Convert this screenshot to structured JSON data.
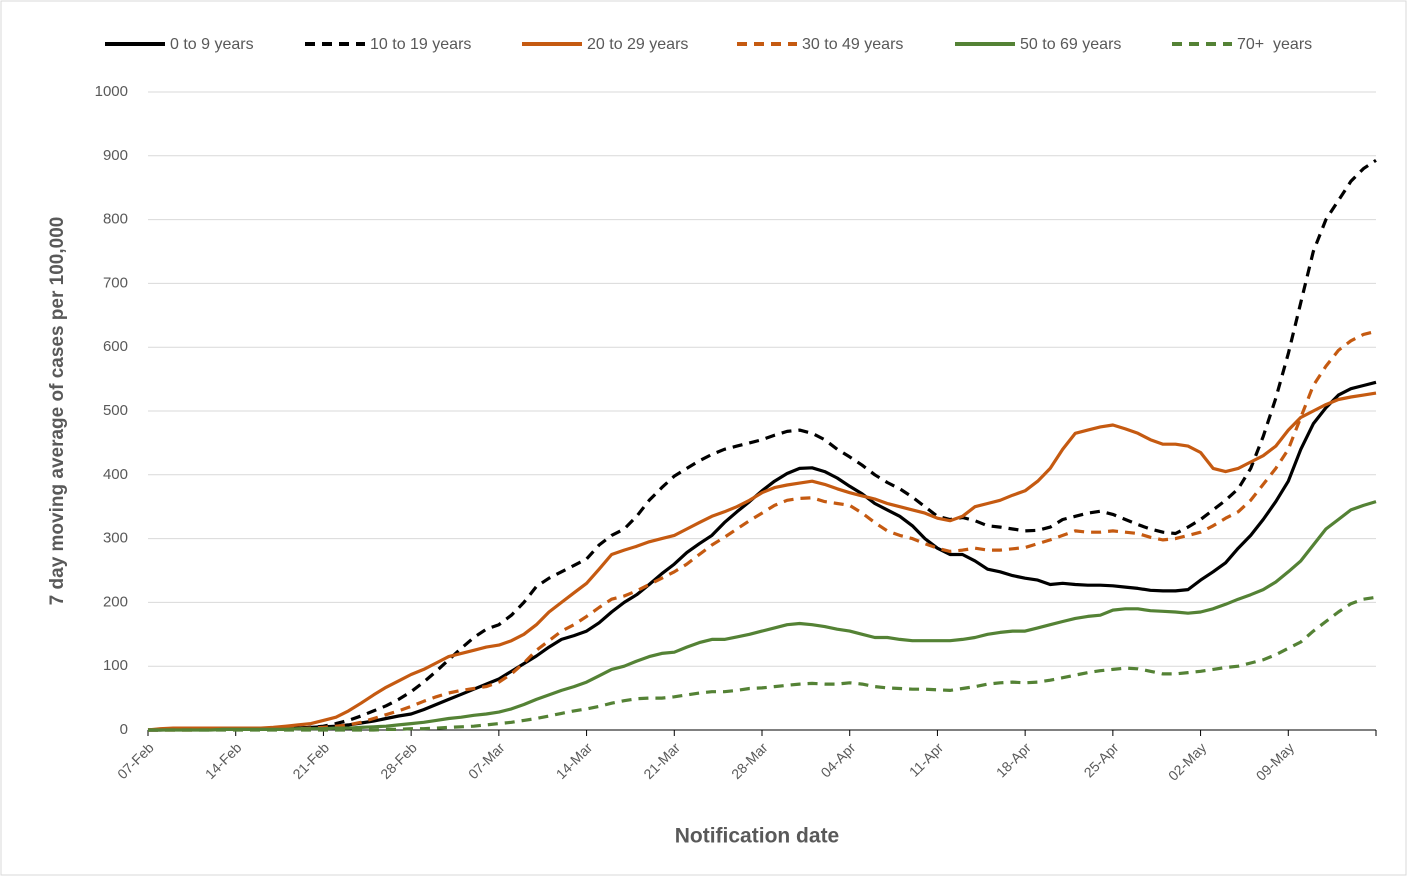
{
  "chart_data": {
    "type": "line",
    "xlabel": "Notification date",
    "ylabel": "7 day moving average of cases per 100,000",
    "legend": "top",
    "grid": true,
    "ylim": [
      0,
      1000
    ],
    "yticks": [
      0,
      100,
      200,
      300,
      400,
      500,
      600,
      700,
      800,
      900,
      1000
    ],
    "categories": [
      "07-Feb",
      null,
      null,
      null,
      null,
      null,
      null,
      "14-Feb",
      null,
      null,
      null,
      null,
      null,
      null,
      "21-Feb",
      null,
      null,
      null,
      null,
      null,
      null,
      "28-Feb",
      null,
      null,
      null,
      null,
      null,
      null,
      "07-Mar",
      null,
      null,
      null,
      null,
      null,
      null,
      "14-Mar",
      null,
      null,
      null,
      null,
      null,
      null,
      "21-Mar",
      null,
      null,
      null,
      null,
      null,
      null,
      "28-Mar",
      null,
      null,
      null,
      null,
      null,
      null,
      "04-Apr",
      null,
      null,
      null,
      null,
      null,
      null,
      "11-Apr",
      null,
      null,
      null,
      null,
      null,
      null,
      "18-Apr",
      null,
      null,
      null,
      null,
      null,
      null,
      "25-Apr",
      null,
      null,
      null,
      null,
      null,
      null,
      "02-May",
      null,
      null,
      null,
      null,
      null,
      null,
      "09-May",
      null,
      null,
      null,
      null,
      null,
      null,
      null
    ],
    "series": [
      {
        "name": "0 to 9 years",
        "color": "#000000",
        "dash": false,
        "values": [
          0,
          0,
          1,
          1,
          1,
          1,
          2,
          2,
          2,
          2,
          2,
          3,
          3,
          4,
          5,
          6,
          8,
          11,
          14,
          18,
          22,
          25,
          32,
          40,
          48,
          56,
          64,
          72,
          80,
          92,
          104,
          116,
          130,
          142,
          148,
          155,
          168,
          185,
          200,
          212,
          228,
          245,
          260,
          278,
          292,
          305,
          325,
          342,
          358,
          375,
          390,
          402,
          410,
          411,
          405,
          395,
          382,
          370,
          355,
          345,
          335,
          320,
          300,
          285,
          275,
          275,
          265,
          252,
          248,
          242,
          238,
          235,
          228,
          230,
          228,
          227,
          227,
          226,
          224,
          222,
          219,
          218,
          218,
          220,
          235,
          248,
          262,
          285,
          305,
          330,
          358,
          390,
          440,
          480,
          505,
          525,
          535,
          540,
          545
        ]
      },
      {
        "name": "10 to 19 years",
        "color": "#000000",
        "dash": true,
        "values": [
          0,
          0,
          1,
          1,
          1,
          1,
          2,
          2,
          2,
          2,
          2,
          3,
          3,
          4,
          6,
          10,
          15,
          22,
          30,
          38,
          48,
          60,
          75,
          92,
          110,
          128,
          145,
          158,
          165,
          180,
          200,
          225,
          238,
          248,
          258,
          268,
          290,
          305,
          315,
          335,
          360,
          380,
          398,
          410,
          422,
          432,
          440,
          445,
          450,
          455,
          462,
          468,
          470,
          465,
          455,
          440,
          428,
          415,
          400,
          388,
          378,
          365,
          350,
          335,
          330,
          333,
          328,
          320,
          318,
          315,
          312,
          313,
          318,
          330,
          335,
          340,
          343,
          338,
          330,
          322,
          315,
          310,
          308,
          318,
          330,
          345,
          360,
          378,
          410,
          460,
          520,
          590,
          670,
          750,
          800,
          830,
          860,
          880,
          893
        ]
      },
      {
        "name": "20 to 29 years",
        "color": "#c55a11",
        "dash": false,
        "values": [
          0,
          2,
          3,
          3,
          3,
          3,
          3,
          3,
          3,
          3,
          4,
          6,
          8,
          10,
          15,
          20,
          30,
          42,
          55,
          67,
          77,
          87,
          95,
          105,
          115,
          120,
          125,
          130,
          133,
          140,
          150,
          165,
          185,
          200,
          215,
          230,
          252,
          275,
          282,
          288,
          295,
          300,
          305,
          315,
          325,
          335,
          342,
          350,
          360,
          372,
          380,
          384,
          387,
          390,
          385,
          378,
          372,
          367,
          362,
          355,
          350,
          345,
          340,
          332,
          328,
          335,
          350,
          355,
          360,
          368,
          375,
          390,
          410,
          440,
          465,
          470,
          475,
          478,
          472,
          465,
          455,
          448,
          448,
          445,
          435,
          410,
          405,
          410,
          420,
          430,
          445,
          470,
          490,
          500,
          510,
          518,
          522,
          525,
          528
        ]
      },
      {
        "name": "30 to 49 years",
        "color": "#c55a11",
        "dash": true,
        "values": [
          0,
          0,
          0,
          0,
          0,
          1,
          1,
          1,
          1,
          1,
          1,
          2,
          2,
          3,
          4,
          6,
          8,
          12,
          18,
          24,
          30,
          37,
          45,
          52,
          58,
          62,
          65,
          68,
          75,
          88,
          105,
          125,
          140,
          155,
          165,
          178,
          192,
          205,
          210,
          218,
          228,
          238,
          248,
          260,
          275,
          290,
          302,
          315,
          328,
          340,
          352,
          360,
          363,
          364,
          358,
          355,
          352,
          340,
          325,
          312,
          305,
          300,
          292,
          285,
          280,
          282,
          285,
          282,
          282,
          284,
          286,
          292,
          298,
          305,
          312,
          310,
          310,
          312,
          310,
          308,
          302,
          298,
          300,
          305,
          310,
          320,
          332,
          342,
          360,
          385,
          410,
          440,
          490,
          540,
          570,
          595,
          610,
          620,
          625
        ]
      },
      {
        "name": "50 to 69 years",
        "color": "#548235",
        "dash": false,
        "values": [
          0,
          0,
          0,
          0,
          0,
          0,
          1,
          1,
          1,
          1,
          1,
          1,
          2,
          2,
          2,
          3,
          3,
          4,
          5,
          6,
          8,
          10,
          12,
          15,
          18,
          20,
          23,
          25,
          28,
          33,
          40,
          48,
          55,
          62,
          68,
          75,
          85,
          95,
          100,
          108,
          115,
          120,
          122,
          130,
          137,
          142,
          142,
          146,
          150,
          155,
          160,
          165,
          167,
          165,
          162,
          158,
          155,
          150,
          145,
          145,
          142,
          140,
          140,
          140,
          140,
          142,
          145,
          150,
          153,
          155,
          155,
          160,
          165,
          170,
          175,
          178,
          180,
          188,
          190,
          190,
          187,
          186,
          185,
          183,
          185,
          190,
          197,
          205,
          212,
          220,
          232,
          248,
          265,
          290,
          315,
          330,
          345,
          352,
          358
        ]
      },
      {
        "name": "70+  years",
        "color": "#548235",
        "dash": true,
        "values": [
          0,
          0,
          0,
          0,
          0,
          0,
          0,
          0,
          0,
          0,
          0,
          0,
          0,
          0,
          0,
          0,
          0,
          0,
          0,
          1,
          1,
          2,
          2,
          3,
          4,
          5,
          6,
          8,
          10,
          12,
          15,
          18,
          22,
          26,
          30,
          33,
          37,
          42,
          46,
          49,
          50,
          50,
          52,
          55,
          58,
          60,
          60,
          62,
          65,
          66,
          68,
          70,
          72,
          73,
          72,
          72,
          74,
          72,
          68,
          66,
          65,
          64,
          64,
          63,
          62,
          65,
          68,
          72,
          74,
          75,
          74,
          75,
          78,
          82,
          86,
          90,
          93,
          95,
          97,
          96,
          92,
          88,
          88,
          90,
          92,
          95,
          98,
          100,
          105,
          110,
          118,
          128,
          138,
          155,
          170,
          185,
          198,
          205,
          208
        ]
      }
    ]
  }
}
